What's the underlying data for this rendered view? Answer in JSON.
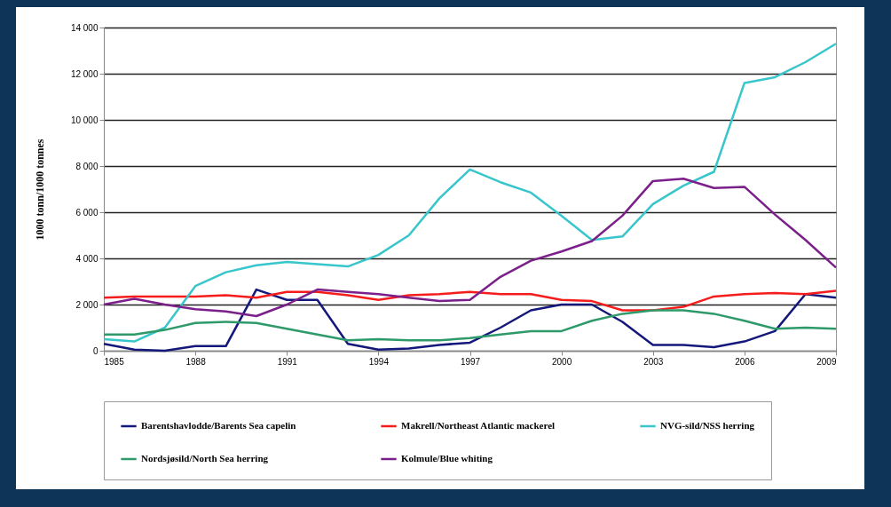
{
  "chart_data": {
    "type": "line",
    "ylabel": "1000 tonn/1000 tonnes",
    "x": [
      1985,
      1986,
      1987,
      1988,
      1989,
      1990,
      1991,
      1992,
      1993,
      1994,
      1995,
      1996,
      1997,
      1998,
      1999,
      2000,
      2001,
      2002,
      2003,
      2004,
      2005,
      2006,
      2007,
      2008,
      2009
    ],
    "xlim": [
      1985,
      2009
    ],
    "xticks": [
      1985,
      1988,
      1991,
      1994,
      1997,
      2000,
      2003,
      2006,
      2009
    ],
    "ylim": [
      0,
      14000
    ],
    "yticks": [
      {
        "value": 0,
        "label": "0"
      },
      {
        "value": 2000,
        "label": "2 000"
      },
      {
        "value": 4000,
        "label": "4 000"
      },
      {
        "value": 6000,
        "label": "6 000"
      },
      {
        "value": 8000,
        "label": "8 000"
      },
      {
        "value": 10000,
        "label": "10 000"
      },
      {
        "value": 12000,
        "label": "12 000"
      },
      {
        "value": 14000,
        "label": "14 000"
      }
    ],
    "grid": "y",
    "legend": "bottom",
    "line_style": "solid",
    "marker": "none",
    "series": [
      {
        "name": "Barentshavlodde/Barents Sea capelin",
        "color": "#14187a",
        "values": [
          300,
          50,
          0,
          200,
          200,
          2650,
          2200,
          2200,
          300,
          50,
          100,
          250,
          350,
          1000,
          1750,
          2000,
          2000,
          1250,
          250,
          250,
          150,
          400,
          850,
          2450,
          2300
        ]
      },
      {
        "name": "Makrell/Northeast Atlantic mackerel",
        "color": "#f51c1c",
        "values": [
          2300,
          2350,
          2350,
          2350,
          2400,
          2300,
          2550,
          2550,
          2400,
          2200,
          2400,
          2450,
          2550,
          2450,
          2450,
          2200,
          2150,
          1750,
          1750,
          1900,
          2350,
          2450,
          2500,
          2450,
          2600
        ]
      },
      {
        "name": "NVG-sild/NSS herring",
        "color": "#38c6cc",
        "values": [
          500,
          400,
          1000,
          2800,
          3400,
          3700,
          3850,
          3750,
          3650,
          4150,
          5000,
          6600,
          7850,
          7300,
          6850,
          5850,
          4800,
          4950,
          6350,
          7150,
          7750,
          11600,
          11850,
          12500,
          13300
        ]
      },
      {
        "name": "Nordsjøsild/North Sea herring",
        "color": "#2e9a6a",
        "values": [
          700,
          700,
          900,
          1200,
          1250,
          1200,
          950,
          700,
          450,
          500,
          450,
          450,
          550,
          700,
          850,
          850,
          1300,
          1600,
          1750,
          1750,
          1600,
          1300,
          950,
          1000,
          950
        ]
      },
      {
        "name": "Kolmule/Blue whiting",
        "color": "#7b1f8a",
        "values": [
          2000,
          2250,
          2000,
          1800,
          1700,
          1500,
          2000,
          2650,
          2550,
          2450,
          2300,
          2150,
          2200,
          3200,
          3900,
          4300,
          4750,
          5850,
          7350,
          7450,
          7050,
          7100,
          5900,
          4800,
          3600
        ]
      }
    ]
  }
}
